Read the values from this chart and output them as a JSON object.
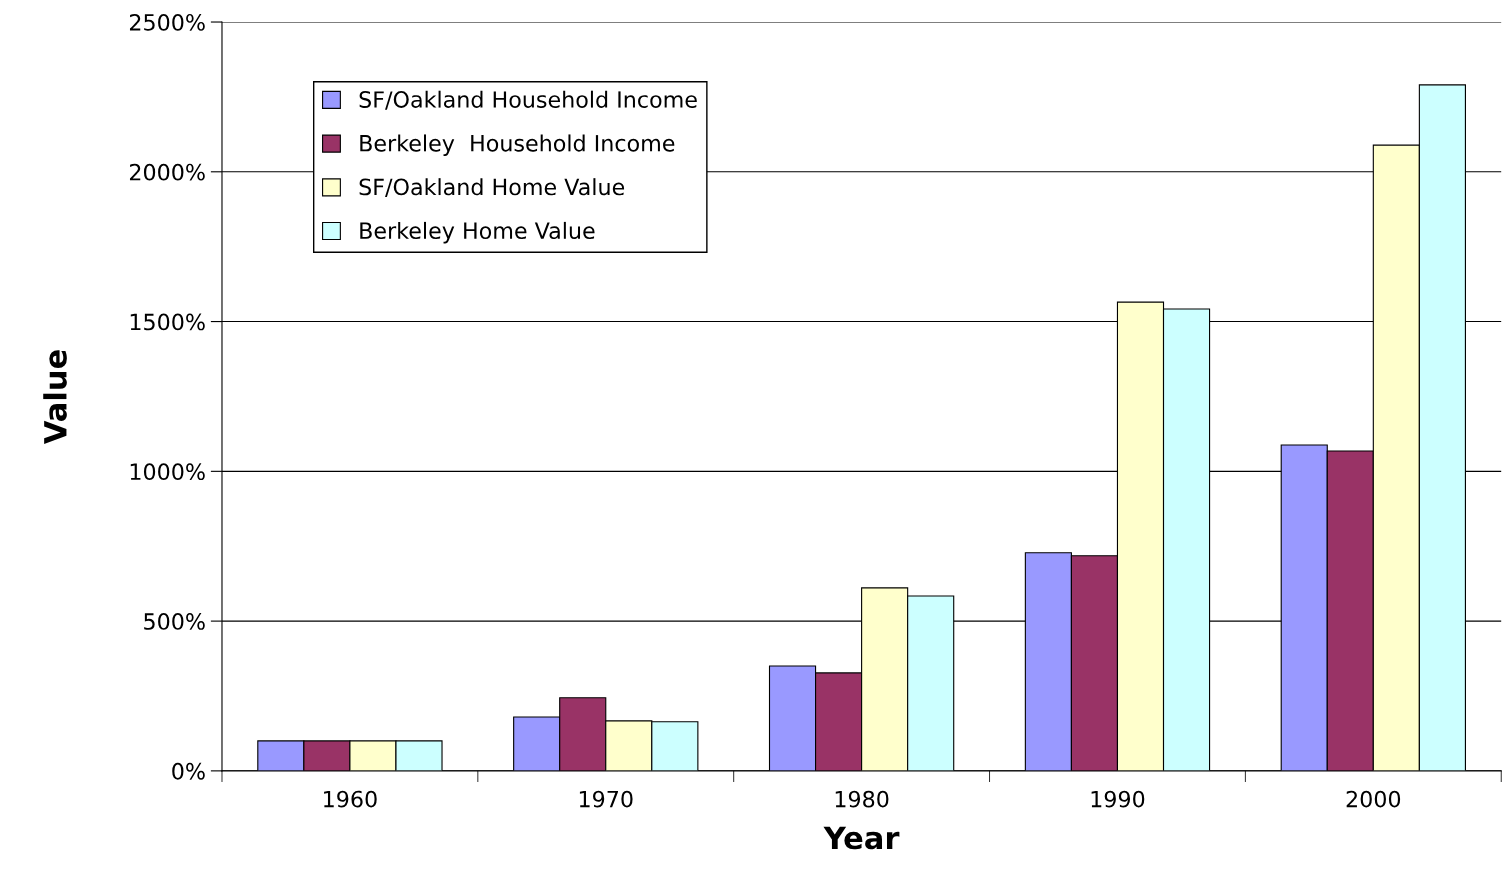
{
  "chart_data": {
    "type": "bar",
    "xlabel": "Year",
    "ylabel": "Value",
    "categories": [
      "1960",
      "1970",
      "1980",
      "1990",
      "2000"
    ],
    "series": [
      {
        "name": "SF/Oakland Household Income",
        "color": "#9999ff",
        "values": [
          100,
          180,
          350,
          728,
          1088
        ]
      },
      {
        "name": "Berkeley  Household Income",
        "color": "#993366",
        "values": [
          100,
          244,
          327,
          718,
          1068
        ]
      },
      {
        "name": "SF/Oakland Home Value",
        "color": "#ffffcc",
        "values": [
          100,
          167,
          611,
          1565,
          2089
        ]
      },
      {
        "name": "Berkeley Home Value",
        "color": "#ccffff",
        "values": [
          100,
          164,
          584,
          1542,
          2290
        ]
      }
    ],
    "ylim": [
      0,
      2500
    ],
    "yticks": [
      {
        "value": 0,
        "label": "0%"
      },
      {
        "value": 500,
        "label": "500%"
      },
      {
        "value": 1000,
        "label": "1000%"
      },
      {
        "value": 1500,
        "label": "1500%"
      },
      {
        "value": 2000,
        "label": "2000%"
      },
      {
        "value": 2500,
        "label": "2500%"
      }
    ],
    "grid": "y",
    "legend": "top left"
  }
}
